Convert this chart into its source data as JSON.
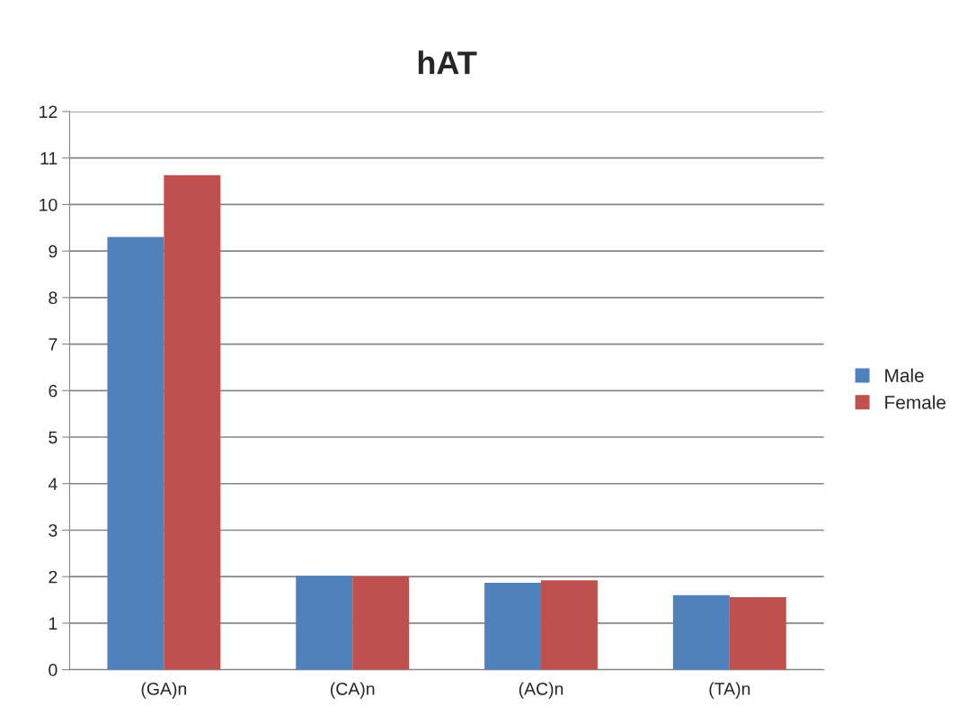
{
  "chart_data": {
    "type": "bar",
    "title": "hAT",
    "categories": [
      "(GA)n",
      "(CA)n",
      "(AC)n",
      "(TA)n"
    ],
    "series": [
      {
        "name": "Male",
        "color": "#4f81bd",
        "values": [
          9.3,
          2.02,
          1.87,
          1.6
        ]
      },
      {
        "name": "Female",
        "color": "#c0504d",
        "values": [
          10.63,
          2.01,
          1.92,
          1.56
        ]
      }
    ],
    "ylim": [
      0,
      12
    ],
    "yticks": [
      0,
      1,
      2,
      3,
      4,
      5,
      6,
      7,
      8,
      9,
      10,
      11,
      12
    ],
    "grid": "y",
    "legend": "right"
  }
}
